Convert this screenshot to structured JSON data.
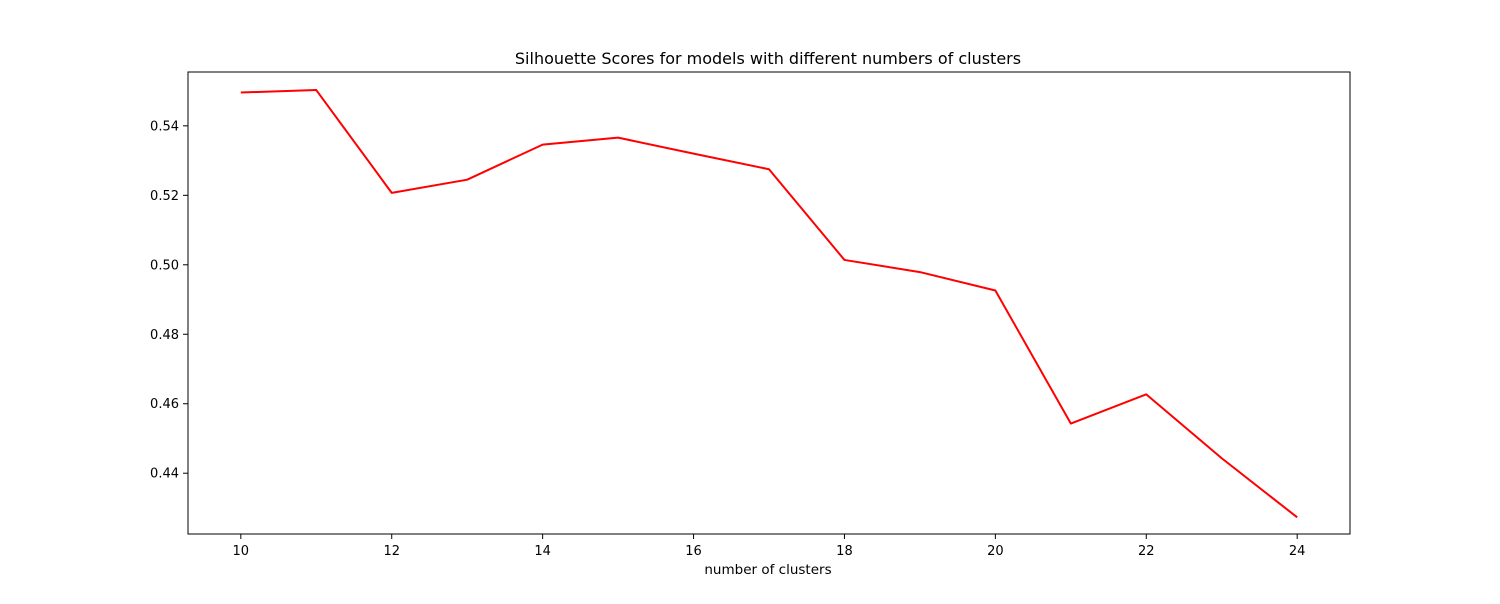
{
  "chart_data": {
    "type": "line",
    "title": "Silhouette Scores for models with different numbers of clusters",
    "xlabel": "number of clusters",
    "ylabel": "",
    "xlim": [
      9.3,
      24.7
    ],
    "ylim": [
      0.4225,
      0.5555
    ],
    "xticks": [
      10,
      12,
      14,
      16,
      18,
      20,
      22,
      24
    ],
    "xtick_labels": [
      "10",
      "12",
      "14",
      "16",
      "18",
      "20",
      "22",
      "24"
    ],
    "yticks": [
      0.44,
      0.46,
      0.48,
      0.5,
      0.52,
      0.54
    ],
    "ytick_labels": [
      "0.44",
      "0.46",
      "0.48",
      "0.50",
      "0.52",
      "0.54"
    ],
    "grid": false,
    "legend": "none",
    "series": [
      {
        "color": "#ff0000",
        "x": [
          10,
          11,
          12,
          13,
          14,
          15,
          16,
          17,
          18,
          19,
          20,
          21,
          22,
          23,
          24
        ],
        "y": [
          0.5496,
          0.5503,
          0.5207,
          0.5245,
          0.5346,
          0.5366,
          0.532,
          0.5275,
          0.5014,
          0.4979,
          0.4926,
          0.4543,
          0.4627,
          0.4443,
          0.4273
        ]
      }
    ]
  }
}
